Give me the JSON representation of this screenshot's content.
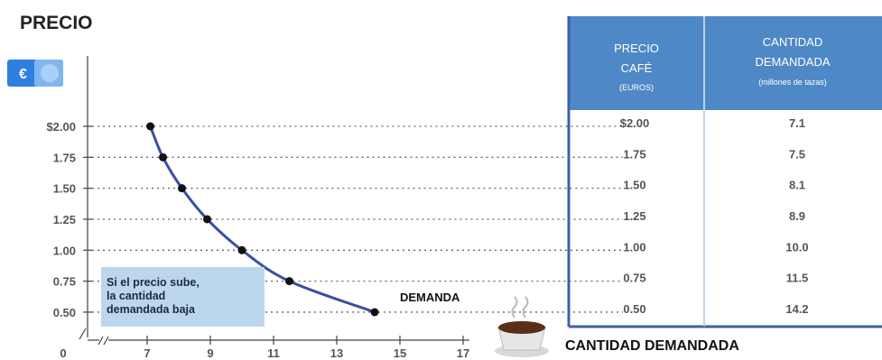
{
  "chart_data": {
    "type": "line",
    "title": "PRECIO",
    "xlabel": "CANTIDAD DEMANDADA",
    "ylabel": "PRECIO",
    "series": [
      {
        "name": "DEMANDA",
        "x": [
          7.1,
          7.5,
          8.1,
          8.9,
          10.0,
          11.5,
          14.2
        ],
        "y": [
          2.0,
          1.75,
          1.5,
          1.25,
          1.0,
          0.75,
          0.5
        ]
      }
    ],
    "x_ticks": [
      "0",
      "7",
      "9",
      "11",
      "13",
      "15",
      "17"
    ],
    "y_ticks": [
      "$2.00",
      "1.75",
      "1.50",
      "1.25",
      "1.00",
      "0.75",
      "0.50"
    ],
    "xlim": [
      7,
      17
    ],
    "ylim": [
      0.5,
      2.0
    ],
    "x_axis_break": true,
    "curve_color": "#3a4fa0",
    "point_color": "#111111",
    "grid": false,
    "guide_lines": "dotted horizontal from each point to table",
    "annotation": "Si el precio sube,\nla cantidad\ndemandada baja",
    "annotation_color": "#bcd6ec",
    "series_label": "DEMANDA"
  },
  "table": {
    "header_color": "#4f88c6",
    "border_color": "#3f5fa6",
    "col1_header": [
      "PRECIO",
      "CAFÉ"
    ],
    "col1_sub": "(EUROS)",
    "col2_header": [
      "CANTIDAD",
      "DEMANDADA"
    ],
    "col2_sub": "(millones de tazas)",
    "rows": [
      {
        "price": "$2.00",
        "qty": "7.1"
      },
      {
        "price": "1.75",
        "qty": "7.5"
      },
      {
        "price": "1.50",
        "qty": "8.1"
      },
      {
        "price": "1.25",
        "qty": "8.9"
      },
      {
        "price": "1.00",
        "qty": "10.0"
      },
      {
        "price": "0.75",
        "qty": "11.5"
      },
      {
        "price": "0.50",
        "qty": "14.2"
      }
    ]
  },
  "icons": {
    "euro": "euro-icon",
    "euro_symbol": "€",
    "coffee": "coffee-cup-icon"
  }
}
